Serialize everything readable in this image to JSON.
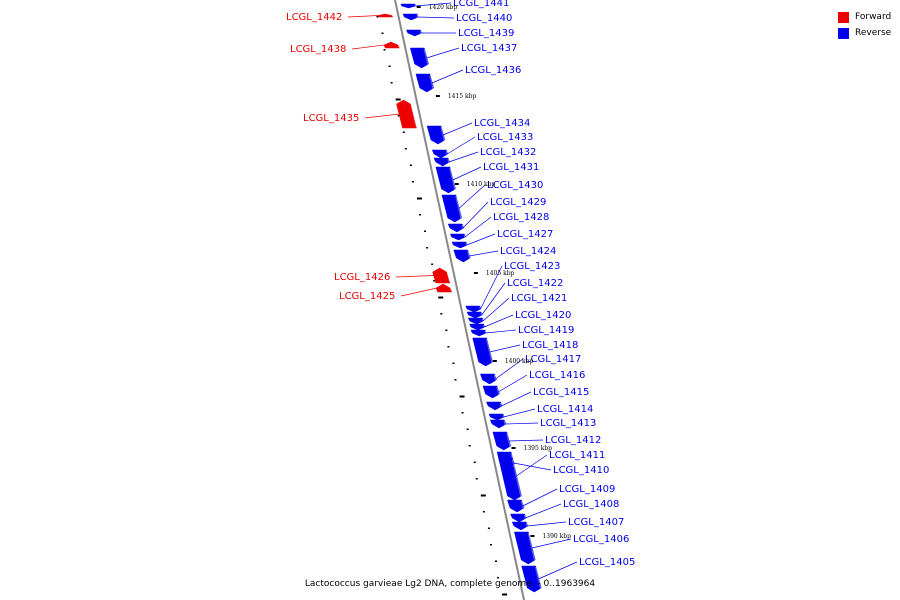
{
  "legend": {
    "forward": {
      "label": "Forward",
      "color": "#ee0000"
    },
    "reverse": {
      "label": "Reverse",
      "color": "#0000ee"
    }
  },
  "caption": "Lactococcus garvieae Lg2 DNA, complete genome. - 0..1963964",
  "axis_color": "#888888",
  "scale_labels": [
    "1420 kbp",
    "1415 kbp",
    "1410 kbp",
    "1405 kbp",
    "1400 kbp",
    "1395 kbp",
    "1390 kbp"
  ],
  "genes": [
    {
      "id": "LCGL_1442",
      "strand": "forward"
    },
    {
      "id": "LCGL_1441",
      "strand": "reverse"
    },
    {
      "id": "LCGL_1440",
      "strand": "reverse"
    },
    {
      "id": "LCGL_1439",
      "strand": "reverse"
    },
    {
      "id": "LCGL_1438",
      "strand": "forward"
    },
    {
      "id": "LCGL_1437",
      "strand": "reverse"
    },
    {
      "id": "LCGL_1436",
      "strand": "reverse"
    },
    {
      "id": "LCGL_1435",
      "strand": "forward"
    },
    {
      "id": "LCGL_1434",
      "strand": "reverse"
    },
    {
      "id": "LCGL_1433",
      "strand": "reverse"
    },
    {
      "id": "LCGL_1432",
      "strand": "reverse"
    },
    {
      "id": "LCGL_1431",
      "strand": "reverse"
    },
    {
      "id": "LCGL_1430",
      "strand": "reverse"
    },
    {
      "id": "LCGL_1429",
      "strand": "reverse"
    },
    {
      "id": "LCGL_1428",
      "strand": "reverse"
    },
    {
      "id": "LCGL_1427",
      "strand": "reverse"
    },
    {
      "id": "LCGL_1426",
      "strand": "forward"
    },
    {
      "id": "LCGL_1425",
      "strand": "forward"
    },
    {
      "id": "LCGL_1424",
      "strand": "reverse"
    },
    {
      "id": "LCGL_1423",
      "strand": "reverse"
    },
    {
      "id": "LCGL_1422",
      "strand": "reverse"
    },
    {
      "id": "LCGL_1421",
      "strand": "reverse"
    },
    {
      "id": "LCGL_1420",
      "strand": "reverse"
    },
    {
      "id": "LCGL_1419",
      "strand": "reverse"
    },
    {
      "id": "LCGL_1418",
      "strand": "reverse"
    },
    {
      "id": "LCGL_1417",
      "strand": "reverse"
    },
    {
      "id": "LCGL_1416",
      "strand": "reverse"
    },
    {
      "id": "LCGL_1415",
      "strand": "reverse"
    },
    {
      "id": "LCGL_1414",
      "strand": "reverse"
    },
    {
      "id": "LCGL_1413",
      "strand": "reverse"
    },
    {
      "id": "LCGL_1412",
      "strand": "reverse"
    },
    {
      "id": "LCGL_1411",
      "strand": "reverse"
    },
    {
      "id": "LCGL_1410",
      "strand": "reverse"
    },
    {
      "id": "LCGL_1409",
      "strand": "reverse"
    },
    {
      "id": "LCGL_1408",
      "strand": "reverse"
    },
    {
      "id": "LCGL_1407",
      "strand": "reverse"
    },
    {
      "id": "LCGL_1406",
      "strand": "reverse"
    },
    {
      "id": "LCGL_1405",
      "strand": "reverse"
    }
  ]
}
